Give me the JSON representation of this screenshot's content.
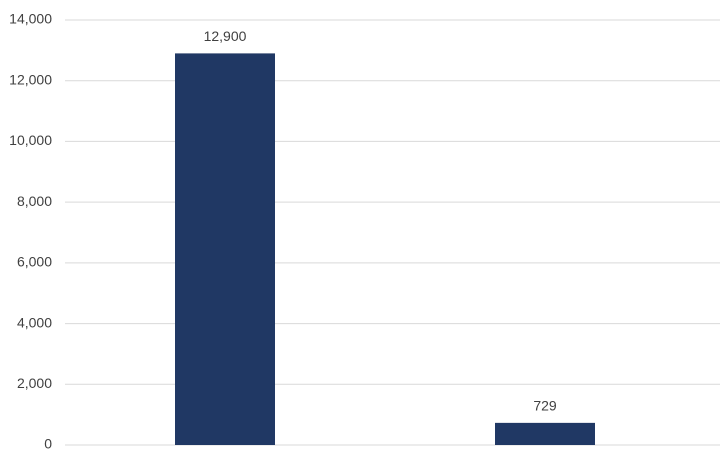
{
  "chart_data": {
    "type": "bar",
    "categories": [
      null,
      null
    ],
    "values": [
      12900,
      729
    ],
    "value_labels": [
      "12,900",
      "729"
    ],
    "color": "#203864",
    "ylim": [
      0,
      14000
    ],
    "yticks": [
      0,
      {
        "value": 2000,
        "label": "2,000"
      },
      {
        "value": 4000,
        "label": "4,000"
      },
      {
        "value": 6000,
        "label": "6,000"
      },
      {
        "value": 8000,
        "label": "8,000"
      },
      {
        "value": 10000,
        "label": "10,000"
      },
      {
        "value": 12000,
        "label": "12,000"
      },
      {
        "value": 14000,
        "label": "14,000"
      }
    ],
    "grid": true
  }
}
